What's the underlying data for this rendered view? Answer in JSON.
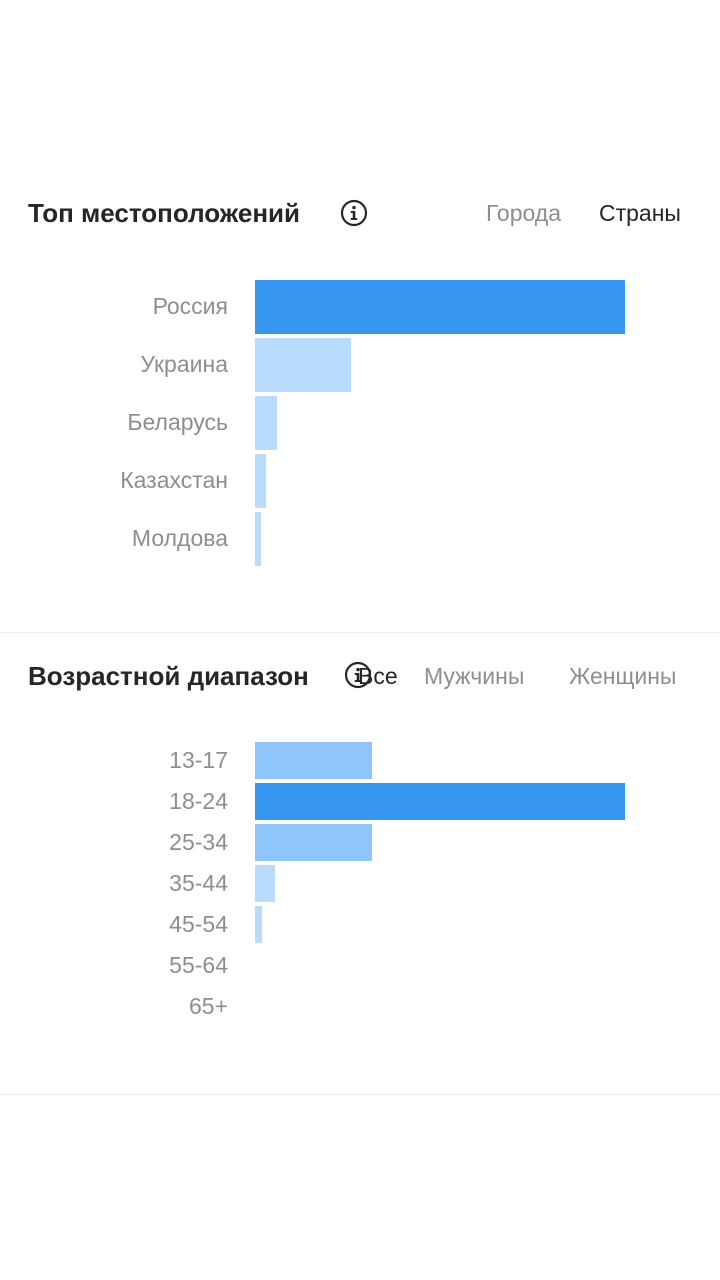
{
  "locations": {
    "title": "Топ местоположений",
    "icon": "info-icon",
    "tabs": [
      {
        "label": "Города",
        "active": false
      },
      {
        "label": "Страны",
        "active": true
      }
    ],
    "chart_data": {
      "type": "bar",
      "orientation": "horizontal",
      "categories": [
        "Россия",
        "Украина",
        "Беларусь",
        "Казахстан",
        "Молдова"
      ],
      "values": [
        100,
        26,
        6,
        3,
        1.5
      ],
      "highlight_color": "#3897f0",
      "bar_color": "#b9dcfd"
    }
  },
  "age": {
    "title": "Возрастной диапазон",
    "icon": "info-icon",
    "tabs": [
      {
        "label": "Все",
        "active": true
      },
      {
        "label": "Мужчины",
        "active": false
      },
      {
        "label": "Женщины",
        "active": false
      }
    ],
    "chart_data": {
      "type": "bar",
      "orientation": "horizontal",
      "categories": [
        "13-17",
        "18-24",
        "25-34",
        "35-44",
        "45-54",
        "55-64",
        "65+"
      ],
      "values": [
        31.5,
        100,
        31.5,
        5.5,
        2,
        0,
        0
      ],
      "highlight_color": "#3897f0",
      "colors": [
        "#8ec5fb",
        "#3897f0",
        "#8ec5fb",
        "#b9dcfd",
        "#b9dcfd",
        "#b9dcfd",
        "#b9dcfd"
      ]
    }
  }
}
